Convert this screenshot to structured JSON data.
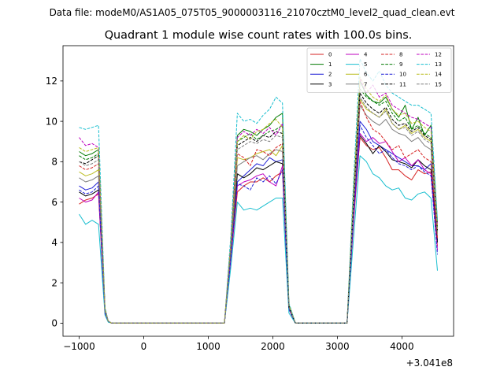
{
  "header_text": "Data file: modeM0/AS1A05_075T05_9000003116_21070cztM0_level2_quad_clean.evt",
  "chart_data": {
    "type": "line",
    "title": "Quadrant 1 module wise count rates with 100.0s bins.",
    "xlabel": "",
    "ylabel": "",
    "x_offset_text": "+3.041e8",
    "xlim": [
      -1250,
      4800
    ],
    "ylim": [
      -0.65,
      13.75
    ],
    "x_ticks": [
      -1000,
      0,
      1000,
      2000,
      3000,
      4000
    ],
    "x_tick_labels": [
      "−1000",
      "0",
      "1000",
      "2000",
      "3000",
      "4000"
    ],
    "y_ticks": [
      0,
      2,
      4,
      6,
      8,
      10,
      12
    ],
    "y_tick_labels": [
      "0",
      "2",
      "4",
      "6",
      "8",
      "10",
      "12"
    ],
    "grid": false,
    "legend_position": "top-right",
    "legend_columns": 4,
    "x": [
      -1000,
      -900,
      -800,
      -700,
      -600,
      -550,
      -500,
      -400,
      -300,
      -200,
      -100,
      0,
      100,
      200,
      300,
      400,
      500,
      600,
      700,
      800,
      900,
      1000,
      1100,
      1200,
      1250,
      1350,
      1450,
      1550,
      1650,
      1750,
      1850,
      1950,
      2050,
      2150,
      2250,
      2350,
      2450,
      2550,
      2650,
      2750,
      2850,
      2950,
      3050,
      3150,
      3250,
      3350,
      3450,
      3550,
      3650,
      3750,
      3850,
      3950,
      4050,
      4150,
      4250,
      4350,
      4450,
      4550
    ],
    "series": [
      {
        "name": "0",
        "color": "#d62020",
        "dash": "solid",
        "values": [
          5.9,
          6.1,
          6.2,
          6.4,
          0.5,
          0.1,
          0,
          0,
          0,
          0,
          0,
          0,
          0,
          0,
          0,
          0,
          0,
          0,
          0,
          0,
          0,
          0,
          0,
          0,
          0,
          3.2,
          6.5,
          6.8,
          7.0,
          7.0,
          7.2,
          7.0,
          7.3,
          7.5,
          0.7,
          0,
          0,
          0,
          0,
          0,
          0,
          0,
          0,
          0,
          5.0,
          9.2,
          8.8,
          8.6,
          8.7,
          8.2,
          7.6,
          7.6,
          7.3,
          7.1,
          7.6,
          7.4,
          7.5,
          3.8
        ]
      },
      {
        "name": "1",
        "color": "#007a00",
        "dash": "solid",
        "values": [
          8.5,
          8.3,
          8.4,
          8.6,
          0.7,
          0.1,
          0,
          0,
          0,
          0,
          0,
          0,
          0,
          0,
          0,
          0,
          0,
          0,
          0,
          0,
          0,
          0,
          0,
          0,
          0,
          4.0,
          9.3,
          9.6,
          9.5,
          9.3,
          9.6,
          9.8,
          10.2,
          10.4,
          0.9,
          0,
          0,
          0,
          0,
          0,
          0,
          0,
          0,
          0,
          6.4,
          12.0,
          11.3,
          11.0,
          10.9,
          11.2,
          10.6,
          10.2,
          10.8,
          9.6,
          10.2,
          9.3,
          9.8,
          5.0
        ]
      },
      {
        "name": "2",
        "color": "#1f1fd6",
        "dash": "solid",
        "values": [
          6.8,
          6.6,
          6.7,
          7.0,
          0.6,
          0.1,
          0,
          0,
          0,
          0,
          0,
          0,
          0,
          0,
          0,
          0,
          0,
          0,
          0,
          0,
          0,
          0,
          0,
          0,
          0,
          3.4,
          7.0,
          7.3,
          7.6,
          7.9,
          7.8,
          8.2,
          8.0,
          8.1,
          0.8,
          0,
          0,
          0,
          0,
          0,
          0,
          0,
          0,
          0,
          5.4,
          10.0,
          9.6,
          9.0,
          8.8,
          8.6,
          8.4,
          8.2,
          8.0,
          7.8,
          7.8,
          7.6,
          7.9,
          4.1
        ]
      },
      {
        "name": "3",
        "color": "#000000",
        "dash": "solid",
        "values": [
          6.5,
          6.3,
          6.4,
          6.6,
          0.5,
          0.1,
          0,
          0,
          0,
          0,
          0,
          0,
          0,
          0,
          0,
          0,
          0,
          0,
          0,
          0,
          0,
          0,
          0,
          0,
          0,
          3.3,
          7.4,
          7.2,
          7.4,
          7.7,
          7.6,
          7.8,
          8.0,
          7.9,
          0.7,
          0,
          0,
          0,
          0,
          0,
          0,
          0,
          0,
          0,
          5.2,
          9.3,
          8.9,
          8.4,
          8.8,
          8.5,
          8.1,
          8.0,
          7.9,
          7.7,
          8.1,
          7.8,
          7.6,
          4.0
        ]
      },
      {
        "name": "4",
        "color": "#bf00bf",
        "dash": "solid",
        "values": [
          6.2,
          6.0,
          6.1,
          6.5,
          0.5,
          0.1,
          0,
          0,
          0,
          0,
          0,
          0,
          0,
          0,
          0,
          0,
          0,
          0,
          0,
          0,
          0,
          0,
          0,
          0,
          0,
          3.2,
          6.8,
          7.0,
          7.1,
          7.3,
          7.4,
          7.0,
          6.8,
          7.8,
          0.7,
          0,
          0,
          0,
          0,
          0,
          0,
          0,
          0,
          0,
          5.1,
          9.4,
          9.0,
          9.2,
          8.9,
          9.0,
          8.5,
          8.0,
          8.2,
          7.8,
          8.1,
          7.6,
          7.4,
          3.6
        ]
      },
      {
        "name": "5",
        "color": "#17becf",
        "dash": "solid",
        "values": [
          5.4,
          4.9,
          5.1,
          4.9,
          0.4,
          0.05,
          0,
          0,
          0,
          0,
          0,
          0,
          0,
          0,
          0,
          0,
          0,
          0,
          0,
          0,
          0,
          0,
          0,
          0,
          0,
          2.8,
          6.0,
          5.6,
          5.7,
          5.6,
          5.8,
          6.0,
          6.2,
          6.2,
          0.5,
          0,
          0,
          0,
          0,
          0,
          0,
          0,
          0,
          0,
          4.2,
          8.3,
          8.0,
          7.4,
          7.2,
          6.8,
          6.6,
          6.7,
          6.2,
          6.1,
          6.4,
          6.5,
          6.2,
          2.6
        ]
      },
      {
        "name": "6",
        "color": "#bcbd22",
        "dash": "solid",
        "values": [
          7.5,
          7.3,
          7.4,
          7.6,
          0.6,
          0.1,
          0,
          0,
          0,
          0,
          0,
          0,
          0,
          0,
          0,
          0,
          0,
          0,
          0,
          0,
          0,
          0,
          0,
          0,
          0,
          3.7,
          8.2,
          8.1,
          8.2,
          8.4,
          8.5,
          8.6,
          8.3,
          8.8,
          0.8,
          0,
          0,
          0,
          0,
          0,
          0,
          0,
          0,
          0,
          5.8,
          11.1,
          10.6,
          10.4,
          10.2,
          10.6,
          9.9,
          9.6,
          9.8,
          9.4,
          9.6,
          9.2,
          9.0,
          4.5
        ]
      },
      {
        "name": "7",
        "color": "#7f7f7f",
        "dash": "solid",
        "values": [
          7.2,
          7.0,
          7.1,
          7.3,
          0.6,
          0.1,
          0,
          0,
          0,
          0,
          0,
          0,
          0,
          0,
          0,
          0,
          0,
          0,
          0,
          0,
          0,
          0,
          0,
          0,
          0,
          3.6,
          7.8,
          8.0,
          8.2,
          8.3,
          8.1,
          8.4,
          8.6,
          8.5,
          0.8,
          0,
          0,
          0,
          0,
          0,
          0,
          0,
          0,
          0,
          5.6,
          10.8,
          10.3,
          10.0,
          9.8,
          10.1,
          9.6,
          9.4,
          9.3,
          9.0,
          9.2,
          8.8,
          8.6,
          4.3
        ]
      },
      {
        "name": "8",
        "color": "#d62020",
        "dash": "dashed",
        "values": [
          7.8,
          7.6,
          7.7,
          7.9,
          0.6,
          0.1,
          0,
          0,
          0,
          0,
          0,
          0,
          0,
          0,
          0,
          0,
          0,
          0,
          0,
          0,
          0,
          0,
          0,
          0,
          0,
          3.7,
          8.4,
          8.2,
          7.8,
          8.6,
          8.5,
          8.3,
          8.7,
          8.9,
          0.8,
          0,
          0,
          0,
          0,
          0,
          0,
          0,
          0,
          0,
          5.8,
          11.0,
          10.2,
          9.6,
          9.4,
          9.0,
          8.6,
          8.8,
          8.2,
          8.4,
          8.6,
          8.2,
          8.0,
          4.2
        ]
      },
      {
        "name": "9",
        "color": "#007a00",
        "dash": "dashed",
        "values": [
          8.3,
          8.1,
          8.2,
          8.4,
          0.7,
          0.1,
          0,
          0,
          0,
          0,
          0,
          0,
          0,
          0,
          0,
          0,
          0,
          0,
          0,
          0,
          0,
          0,
          0,
          0,
          0,
          3.9,
          9.0,
          9.2,
          9.4,
          9.1,
          9.3,
          9.5,
          9.6,
          9.8,
          0.9,
          0,
          0,
          0,
          0,
          0,
          0,
          0,
          0,
          0,
          6.2,
          11.6,
          11.2,
          11.0,
          10.8,
          11.0,
          10.4,
          10.0,
          10.2,
          9.6,
          9.8,
          9.4,
          9.2,
          4.8
        ]
      },
      {
        "name": "10",
        "color": "#1f1fd6",
        "dash": "dashed",
        "values": [
          6.6,
          6.4,
          6.5,
          6.8,
          0.5,
          0.1,
          0,
          0,
          0,
          0,
          0,
          0,
          0,
          0,
          0,
          0,
          0,
          0,
          0,
          0,
          0,
          0,
          0,
          0,
          0,
          3.3,
          6.9,
          6.8,
          6.6,
          7.2,
          7.0,
          7.3,
          6.9,
          7.6,
          0.7,
          0,
          0,
          0,
          0,
          0,
          0,
          0,
          0,
          0,
          5.3,
          9.8,
          9.2,
          8.8,
          8.4,
          8.6,
          8.2,
          7.9,
          7.8,
          7.6,
          7.8,
          7.5,
          7.3,
          3.4
        ]
      },
      {
        "name": "11",
        "color": "#000000",
        "dash": "dashed",
        "values": [
          8.0,
          7.9,
          8.1,
          8.3,
          0.7,
          0.1,
          0,
          0,
          0,
          0,
          0,
          0,
          0,
          0,
          0,
          0,
          0,
          0,
          0,
          0,
          0,
          0,
          0,
          0,
          0,
          3.8,
          8.8,
          9.0,
          9.2,
          9.0,
          9.3,
          9.2,
          9.5,
          9.4,
          0.8,
          0,
          0,
          0,
          0,
          0,
          0,
          0,
          0,
          0,
          6.0,
          11.4,
          10.9,
          10.6,
          10.4,
          10.7,
          10.1,
          9.8,
          9.9,
          9.5,
          9.7,
          9.3,
          9.1,
          4.6
        ]
      },
      {
        "name": "12",
        "color": "#bf00bf",
        "dash": "dashed",
        "values": [
          9.2,
          8.8,
          8.9,
          8.7,
          0.7,
          0.1,
          0,
          0,
          0,
          0,
          0,
          0,
          0,
          0,
          0,
          0,
          0,
          0,
          0,
          0,
          0,
          0,
          0,
          0,
          0,
          4.1,
          9.2,
          9.5,
          9.3,
          9.6,
          9.4,
          9.7,
          9.3,
          9.9,
          0.9,
          0,
          0,
          0,
          0,
          0,
          0,
          0,
          0,
          0,
          6.5,
          12.1,
          11.4,
          11.8,
          11.2,
          11.4,
          10.8,
          10.6,
          10.4,
          10.2,
          10.1,
          9.9,
          9.7,
          4.9
        ]
      },
      {
        "name": "13",
        "color": "#17becf",
        "dash": "dashed",
        "values": [
          9.7,
          9.6,
          9.7,
          9.8,
          0.8,
          0.1,
          0,
          0,
          0,
          0,
          0,
          0,
          0,
          0,
          0,
          0,
          0,
          0,
          0,
          0,
          0,
          0,
          0,
          0,
          0,
          4.4,
          10.4,
          10.0,
          10.1,
          9.9,
          10.3,
          10.6,
          11.2,
          10.9,
          1.0,
          0,
          0,
          0,
          0,
          0,
          0,
          0,
          0,
          0,
          7.0,
          13.1,
          12.4,
          12.0,
          12.5,
          11.8,
          11.4,
          11.2,
          11.0,
          10.8,
          10.8,
          10.6,
          10.4,
          5.1
        ]
      },
      {
        "name": "14",
        "color": "#bcbd22",
        "dash": "dashed",
        "values": [
          8.7,
          8.5,
          8.6,
          8.7,
          0.7,
          0.1,
          0,
          0,
          0,
          0,
          0,
          0,
          0,
          0,
          0,
          0,
          0,
          0,
          0,
          0,
          0,
          0,
          0,
          0,
          0,
          4.0,
          9.0,
          9.3,
          9.1,
          9.5,
          9.6,
          9.9,
          10.1,
          9.7,
          0.9,
          0,
          0,
          0,
          0,
          0,
          0,
          0,
          0,
          0,
          6.4,
          12.2,
          11.6,
          11.2,
          11.0,
          11.3,
          10.6,
          10.3,
          10.4,
          9.9,
          10.0,
          9.7,
          9.5,
          4.7
        ]
      },
      {
        "name": "15",
        "color": "#7f7f7f",
        "dash": "dashed",
        "values": [
          8.0,
          7.8,
          7.9,
          8.1,
          0.6,
          0.1,
          0,
          0,
          0,
          0,
          0,
          0,
          0,
          0,
          0,
          0,
          0,
          0,
          0,
          0,
          0,
          0,
          0,
          0,
          0,
          3.8,
          8.6,
          8.8,
          9.0,
          8.9,
          9.1,
          9.0,
          9.3,
          9.2,
          0.8,
          0,
          0,
          0,
          0,
          0,
          0,
          0,
          0,
          0,
          5.9,
          11.2,
          10.7,
          10.4,
          10.2,
          10.5,
          9.9,
          9.6,
          9.7,
          9.3,
          9.5,
          9.1,
          8.9,
          4.4
        ]
      }
    ]
  }
}
